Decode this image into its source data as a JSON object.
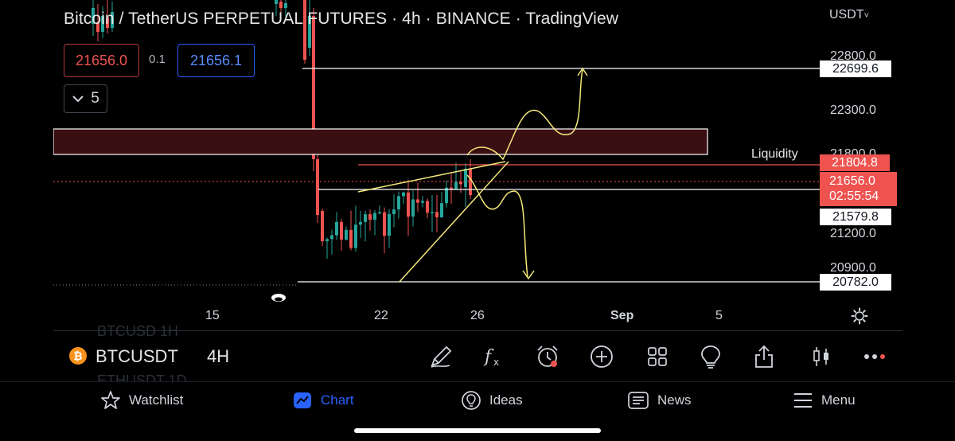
{
  "header": {
    "title": "Bitcoin / TetherUS PERPETUAL FUTURES · 4h · BINANCE · TradingView",
    "sell_price": "21656.0",
    "spread": "0.1",
    "buy_price": "21656.1",
    "indicators_count": "5"
  },
  "price_axis": {
    "currency": "USDT",
    "ticks": [
      "22800.0",
      "22300.0",
      "21800.0",
      "21200.0",
      "20900.0"
    ],
    "labels": {
      "top_line": "22699.6",
      "red_line": "21804.8",
      "current_price": "21656.0",
      "countdown": "02:55:54",
      "mid_line": "21579.8",
      "bottom_line": "20782.0"
    }
  },
  "annotations": {
    "liquidity_label": "Liquidity"
  },
  "time_axis": [
    "15",
    "22",
    "26",
    "Sep",
    "5"
  ],
  "toolbar": {
    "symbol": "BTCUSDT",
    "symbol_icon": "₿",
    "interval": "4H",
    "ghost_rows": [
      "BTCUSD 1H",
      "ETHUSDT 1D"
    ],
    "tools": [
      "brush-icon",
      "fx-icon",
      "alarm-icon",
      "plus-circle-icon",
      "grid-icon",
      "lightbulb-icon",
      "share-icon",
      "candles-icon",
      "more-icon"
    ]
  },
  "tabs": [
    {
      "label": "Watchlist",
      "icon": "star-icon",
      "active": false
    },
    {
      "label": "Chart",
      "icon": "chart-icon",
      "active": true
    },
    {
      "label": "Ideas",
      "icon": "bulb-icon",
      "active": false
    },
    {
      "label": "News",
      "icon": "news-icon",
      "active": false
    },
    {
      "label": "Menu",
      "icon": "menu-icon",
      "active": false
    }
  ],
  "colors": {
    "up": "#26a69a",
    "down": "#ef5350",
    "accent": "#2962ff",
    "drawing": "#f5e87a",
    "zone": "#3a0f12"
  },
  "chart_data": {
    "type": "candlestick",
    "interval": "4h",
    "price_lines": [
      22699.6,
      21804.8,
      21579.8,
      20782.0
    ],
    "current_price": 21656.0,
    "liquidity_zone": [
      21950,
      22190
    ],
    "y_ticks": [
      22800,
      22300,
      21800,
      21200,
      20900
    ]
  }
}
